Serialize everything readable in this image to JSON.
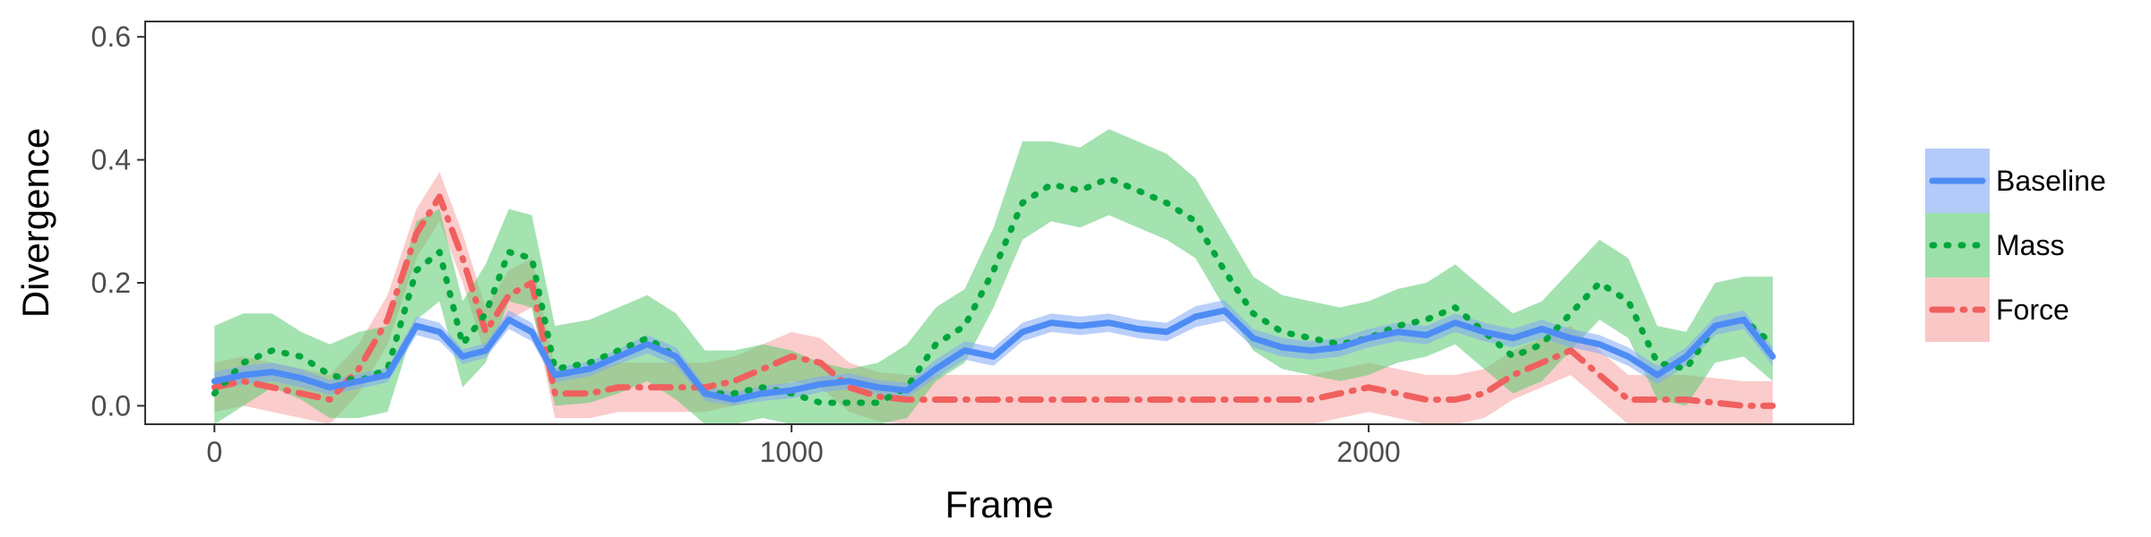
{
  "chart_data": {
    "type": "line",
    "title": "",
    "xlabel": "Frame",
    "ylabel": "Divergence",
    "xlim": [
      -120,
      2840
    ],
    "ylim": [
      -0.03,
      0.625
    ],
    "xticks": [
      0,
      1000,
      2000
    ],
    "xtick_labels": [
      "0",
      "1000",
      "2000"
    ],
    "yticks": [
      0.0,
      0.2,
      0.4,
      0.6
    ],
    "ytick_labels": [
      "0.0",
      "0.2",
      "0.4",
      "0.6"
    ],
    "grid": false,
    "legend_position": "right",
    "x": [
      0,
      50,
      100,
      150,
      200,
      250,
      300,
      350,
      390,
      430,
      470,
      510,
      550,
      590,
      650,
      700,
      750,
      800,
      850,
      900,
      950,
      1000,
      1050,
      1100,
      1150,
      1200,
      1250,
      1300,
      1350,
      1400,
      1450,
      1500,
      1550,
      1600,
      1650,
      1700,
      1750,
      1800,
      1850,
      1900,
      1950,
      2000,
      2050,
      2100,
      2150,
      2200,
      2250,
      2300,
      2350,
      2400,
      2450,
      2500,
      2550,
      2600,
      2650,
      2700
    ],
    "series": [
      {
        "name": "Baseline",
        "color": "#4E8CF5",
        "band_color": "#7FA8F5",
        "dash": "solid",
        "values": [
          0.04,
          0.05,
          0.055,
          0.045,
          0.03,
          0.04,
          0.05,
          0.13,
          0.12,
          0.08,
          0.09,
          0.14,
          0.12,
          0.05,
          0.06,
          0.08,
          0.1,
          0.08,
          0.02,
          0.01,
          0.02,
          0.025,
          0.035,
          0.04,
          0.03,
          0.025,
          0.06,
          0.09,
          0.08,
          0.12,
          0.135,
          0.13,
          0.135,
          0.125,
          0.12,
          0.145,
          0.155,
          0.11,
          0.095,
          0.09,
          0.095,
          0.11,
          0.12,
          0.115,
          0.135,
          0.12,
          0.11,
          0.125,
          0.11,
          0.1,
          0.08,
          0.05,
          0.08,
          0.13,
          0.14,
          0.08
        ],
        "lower": [
          0.025,
          0.035,
          0.04,
          0.03,
          0.018,
          0.028,
          0.038,
          0.115,
          0.105,
          0.068,
          0.078,
          0.125,
          0.105,
          0.038,
          0.048,
          0.068,
          0.085,
          0.065,
          0.008,
          0.0,
          0.008,
          0.012,
          0.022,
          0.027,
          0.018,
          0.013,
          0.045,
          0.075,
          0.065,
          0.105,
          0.12,
          0.115,
          0.12,
          0.11,
          0.105,
          0.128,
          0.138,
          0.095,
          0.08,
          0.075,
          0.08,
          0.095,
          0.105,
          0.1,
          0.12,
          0.105,
          0.095,
          0.11,
          0.095,
          0.085,
          0.065,
          0.035,
          0.065,
          0.115,
          0.125,
          0.065
        ],
        "upper": [
          0.055,
          0.065,
          0.07,
          0.06,
          0.042,
          0.052,
          0.062,
          0.145,
          0.135,
          0.092,
          0.102,
          0.155,
          0.135,
          0.062,
          0.072,
          0.092,
          0.115,
          0.095,
          0.032,
          0.022,
          0.032,
          0.038,
          0.048,
          0.053,
          0.042,
          0.037,
          0.075,
          0.105,
          0.095,
          0.135,
          0.15,
          0.145,
          0.15,
          0.14,
          0.135,
          0.162,
          0.172,
          0.125,
          0.11,
          0.105,
          0.11,
          0.125,
          0.135,
          0.13,
          0.15,
          0.135,
          0.125,
          0.14,
          0.125,
          0.115,
          0.095,
          0.065,
          0.095,
          0.145,
          0.155,
          0.095
        ]
      },
      {
        "name": "Mass",
        "color": "#00A63C",
        "band_color": "#5ACB6F",
        "dash": "dot",
        "values": [
          0.02,
          0.07,
          0.09,
          0.08,
          0.05,
          0.04,
          0.06,
          0.22,
          0.25,
          0.1,
          0.15,
          0.25,
          0.24,
          0.06,
          0.07,
          0.09,
          0.11,
          0.08,
          0.02,
          0.02,
          0.03,
          0.02,
          0.005,
          0.005,
          0.005,
          0.03,
          0.1,
          0.13,
          0.22,
          0.33,
          0.36,
          0.35,
          0.37,
          0.35,
          0.33,
          0.3,
          0.22,
          0.15,
          0.12,
          0.11,
          0.1,
          0.11,
          0.13,
          0.14,
          0.16,
          0.12,
          0.08,
          0.1,
          0.15,
          0.2,
          0.17,
          0.07,
          0.06,
          0.13,
          0.14,
          0.1
        ],
        "lower": [
          -0.03,
          0.0,
          0.03,
          0.01,
          -0.02,
          -0.02,
          -0.01,
          0.14,
          0.17,
          0.03,
          0.07,
          0.17,
          0.16,
          0.0,
          0.005,
          0.02,
          0.04,
          0.01,
          -0.03,
          -0.03,
          -0.02,
          -0.03,
          -0.03,
          -0.03,
          -0.03,
          -0.02,
          0.04,
          0.07,
          0.16,
          0.27,
          0.3,
          0.29,
          0.31,
          0.29,
          0.27,
          0.24,
          0.16,
          0.09,
          0.06,
          0.05,
          0.04,
          0.05,
          0.07,
          0.08,
          0.1,
          0.06,
          0.02,
          0.04,
          0.09,
          0.14,
          0.11,
          0.01,
          0.0,
          0.07,
          0.08,
          0.04
        ],
        "upper": [
          0.13,
          0.15,
          0.15,
          0.12,
          0.1,
          0.12,
          0.13,
          0.3,
          0.32,
          0.17,
          0.23,
          0.32,
          0.31,
          0.13,
          0.14,
          0.16,
          0.18,
          0.15,
          0.09,
          0.09,
          0.1,
          0.09,
          0.07,
          0.06,
          0.07,
          0.1,
          0.16,
          0.19,
          0.29,
          0.43,
          0.43,
          0.42,
          0.45,
          0.43,
          0.41,
          0.37,
          0.29,
          0.21,
          0.18,
          0.17,
          0.16,
          0.17,
          0.19,
          0.2,
          0.23,
          0.19,
          0.15,
          0.17,
          0.22,
          0.27,
          0.24,
          0.13,
          0.12,
          0.2,
          0.21,
          0.21
        ]
      },
      {
        "name": "Force",
        "color": "#F0605E",
        "band_color": "#F5A3A0",
        "dash": "dashdot",
        "values": [
          0.03,
          0.04,
          0.03,
          0.02,
          0.01,
          0.06,
          0.14,
          0.28,
          0.34,
          0.24,
          0.12,
          0.18,
          0.2,
          0.02,
          0.02,
          0.03,
          0.03,
          0.03,
          0.03,
          0.04,
          0.06,
          0.08,
          0.07,
          0.03,
          0.015,
          0.01,
          0.01,
          0.01,
          0.01,
          0.01,
          0.01,
          0.01,
          0.01,
          0.01,
          0.01,
          0.01,
          0.01,
          0.01,
          0.01,
          0.01,
          0.02,
          0.03,
          0.02,
          0.01,
          0.01,
          0.02,
          0.05,
          0.07,
          0.09,
          0.05,
          0.01,
          0.01,
          0.01,
          0.005,
          0.0,
          0.0
        ],
        "lower": [
          -0.01,
          0.0,
          -0.01,
          -0.02,
          -0.03,
          0.02,
          0.1,
          0.24,
          0.3,
          0.2,
          0.08,
          0.14,
          0.16,
          -0.02,
          -0.02,
          -0.01,
          -0.01,
          -0.01,
          -0.01,
          0.0,
          0.02,
          0.04,
          0.03,
          -0.01,
          -0.025,
          -0.03,
          -0.03,
          -0.03,
          -0.03,
          -0.03,
          -0.03,
          -0.03,
          -0.03,
          -0.03,
          -0.03,
          -0.03,
          -0.03,
          -0.03,
          -0.03,
          -0.03,
          -0.02,
          -0.01,
          -0.02,
          -0.03,
          -0.03,
          -0.02,
          0.01,
          0.03,
          0.05,
          0.01,
          -0.03,
          -0.03,
          -0.03,
          -0.03,
          -0.03,
          -0.03
        ],
        "upper": [
          0.07,
          0.08,
          0.07,
          0.06,
          0.05,
          0.1,
          0.18,
          0.32,
          0.38,
          0.28,
          0.16,
          0.22,
          0.24,
          0.06,
          0.06,
          0.07,
          0.07,
          0.07,
          0.07,
          0.08,
          0.1,
          0.12,
          0.11,
          0.07,
          0.055,
          0.05,
          0.05,
          0.05,
          0.05,
          0.05,
          0.05,
          0.05,
          0.05,
          0.05,
          0.05,
          0.05,
          0.05,
          0.05,
          0.05,
          0.05,
          0.06,
          0.07,
          0.06,
          0.05,
          0.05,
          0.06,
          0.09,
          0.11,
          0.13,
          0.09,
          0.05,
          0.05,
          0.05,
          0.045,
          0.04,
          0.04
        ]
      }
    ]
  }
}
